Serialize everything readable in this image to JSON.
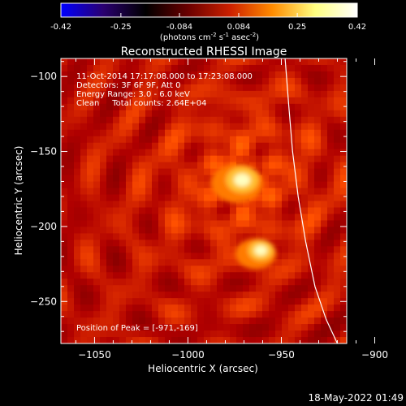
{
  "chart_data": {
    "type": "heatmap",
    "title": "Reconstructed RHESSI Image",
    "xlabel": "Heliocentric X (arcsec)",
    "ylabel": "Heliocentric Y (arcsec)",
    "xlim": [
      -1068,
      -915
    ],
    "ylim": [
      -278,
      -88
    ],
    "x_ticks": [
      -1050,
      -1000,
      -950,
      -900
    ],
    "y_ticks": [
      -100,
      -150,
      -200,
      -250
    ],
    "colorbar": {
      "range": [
        -0.42,
        0.42
      ],
      "ticks": [
        -0.42,
        -0.25,
        -0.084,
        0.084,
        0.25,
        0.42
      ],
      "tick_labels": [
        "-0.42",
        "-0.25",
        "-0.084",
        "0.084",
        "0.25",
        "0.42"
      ],
      "unit_prefix": "(photons cm",
      "unit_exp1": "-2",
      "unit_mid": " s",
      "unit_exp2": "-1",
      "unit_mid2": " asec",
      "unit_exp3": "-2",
      "unit_suffix": ")",
      "colormap": [
        "#0000ff",
        "#2a0070",
        "#000000",
        "#6a0000",
        "#cc2000",
        "#ff8c00",
        "#ffff80",
        "#ffffff"
      ]
    },
    "annotations": [
      "11-Oct-2014 17:17:08.000 to 17:23:08.000",
      "Detectors: 3F 6F 9F, Att 0",
      "Energy Range: 3.0 - 6.0 keV",
      "Clean     Total counts: 2.64E+04"
    ],
    "peak_label": "Position of Peak = [-971,-169]",
    "sources": [
      {
        "x": -971,
        "y": -169,
        "peak": 0.42
      },
      {
        "x": -961,
        "y": -216,
        "peak": 0.33
      }
    ],
    "limb_curve": {
      "x": [
        -948,
        -946,
        -944,
        -941,
        -937,
        -932,
        -926,
        -920
      ],
      "y": [
        -88,
        -120,
        -150,
        -180,
        -210,
        -240,
        -262,
        -278
      ]
    }
  },
  "footer": {
    "timestamp": "18-May-2022 01:49"
  }
}
